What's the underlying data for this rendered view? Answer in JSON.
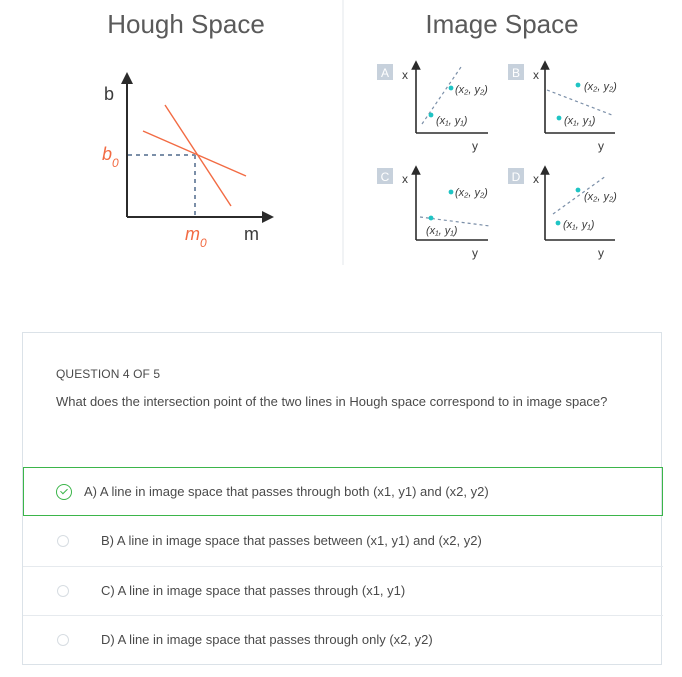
{
  "figure": {
    "hough_title": "Hough Space",
    "image_title": "Image Space",
    "axis_b": "b",
    "axis_m": "m",
    "b0": "b",
    "b0_sub": "0",
    "m0": "m",
    "m0_sub": "0",
    "panels": [
      {
        "letter": "A",
        "x_label": "x",
        "y_label": "y",
        "p1": "(x₁, y₁)",
        "p2": "(x₂, y₂)"
      },
      {
        "letter": "B",
        "x_label": "x",
        "y_label": "y",
        "p1": "(x₁, y₁)",
        "p2": "(x₂, y₂)"
      },
      {
        "letter": "C",
        "x_label": "x",
        "y_label": "y",
        "p1": "(x₁, y₁)",
        "p2": "(x₂, y₂)"
      },
      {
        "letter": "D",
        "x_label": "x",
        "y_label": "y",
        "p1": "(x₁, y₁)",
        "p2": "(x₂, y₂)"
      }
    ],
    "colors": {
      "line": "#f26b43",
      "point": "#1fc4c4",
      "dash": "#7b8fa8",
      "panel_tag": "#c7d1dc",
      "axis": "#2b2b2b"
    }
  },
  "quiz": {
    "heading": "QUESTION 4 OF 5",
    "question": "What does the intersection point of the two lines in Hough space correspond to in image space?",
    "options": [
      {
        "label": "A) A line in image space that passes through both (x1, y1) and (x2, y2)",
        "selected": true
      },
      {
        "label": "B) A line in image space that passes between (x1, y1) and (x2, y2)",
        "selected": false
      },
      {
        "label": "C) A line in image space that passes through (x1, y1)",
        "selected": false
      },
      {
        "label": "D) A line in image space that passes through only (x2, y2)",
        "selected": false
      }
    ],
    "accent_color": "#3bb54a"
  }
}
